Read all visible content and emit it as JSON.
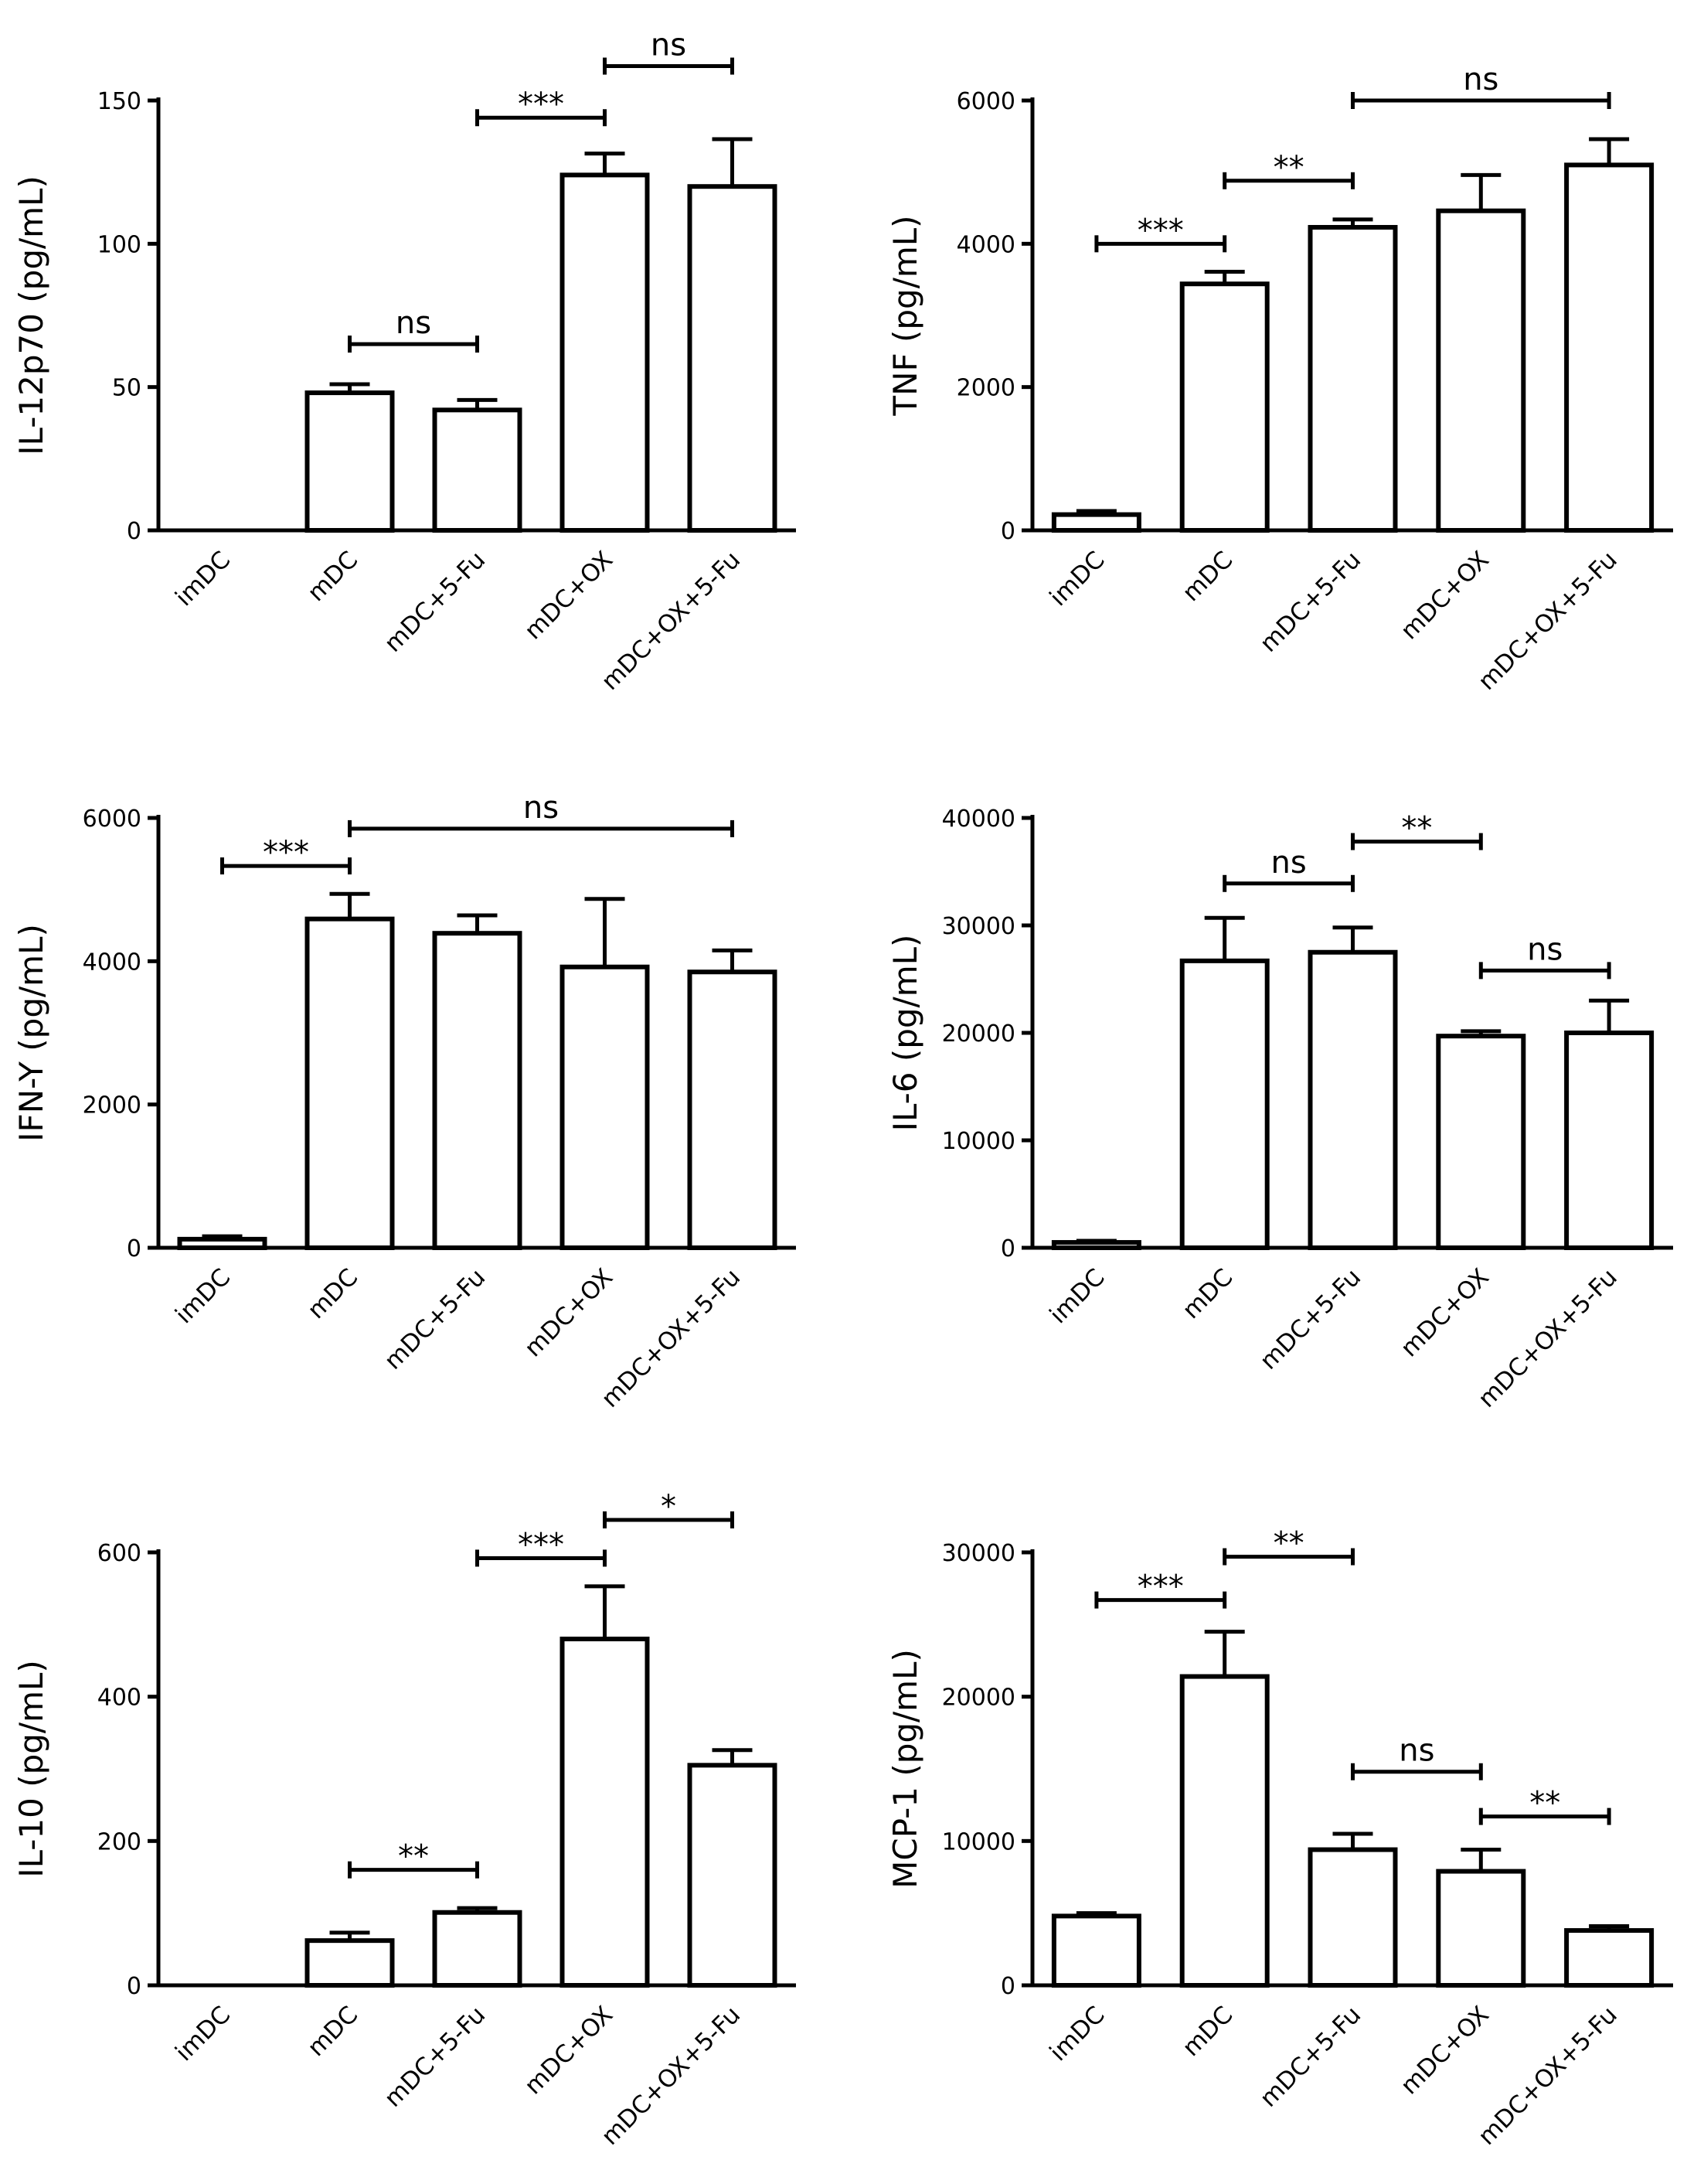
{
  "chart_data": [
    {
      "type": "bar",
      "ylabel": "IL-12p70 (pg/mL)",
      "ylim": [
        0,
        150
      ],
      "yticks": [
        0,
        50,
        100,
        150
      ],
      "categories": [
        "imDC",
        "mDC",
        "mDC+5-Fu",
        "mDC+OX",
        "mDC+OX+5-Fu"
      ],
      "values": [
        0,
        48,
        42,
        124,
        120
      ],
      "errors": [
        0,
        3,
        3.5,
        7.5,
        16.5
      ],
      "comparisons": [
        {
          "from": 1,
          "to": 2,
          "label": "ns",
          "y": 65
        },
        {
          "from": 2,
          "to": 3,
          "label": "***",
          "y": 144
        },
        {
          "from": 3,
          "to": 4,
          "label": "ns",
          "y": 162
        }
      ]
    },
    {
      "type": "bar",
      "ylabel": "TNF (pg/mL)",
      "ylim": [
        0,
        6000
      ],
      "yticks": [
        0,
        2000,
        4000,
        6000
      ],
      "categories": [
        "imDC",
        "mDC",
        "mDC+5-Fu",
        "mDC+OX",
        "mDC+OX+5-Fu"
      ],
      "values": [
        220,
        3440,
        4230,
        4460,
        5100
      ],
      "errors": [
        50,
        170,
        110,
        500,
        360
      ],
      "comparisons": [
        {
          "from": 0,
          "to": 1,
          "label": "***",
          "y": 4000
        },
        {
          "from": 1,
          "to": 2,
          "label": "**",
          "y": 4880
        },
        {
          "from": 2,
          "to": 4,
          "label": "ns",
          "y": 6000
        }
      ]
    },
    {
      "type": "bar",
      "ylabel": "IFN-Y (pg/mL)",
      "ylim": [
        0,
        6000
      ],
      "yticks": [
        0,
        2000,
        4000,
        6000
      ],
      "categories": [
        "imDC",
        "mDC",
        "mDC+5-Fu",
        "mDC+OX",
        "mDC+OX+5-Fu"
      ],
      "values": [
        120,
        4590,
        4390,
        3920,
        3850
      ],
      "errors": [
        40,
        350,
        250,
        950,
        300
      ],
      "comparisons": [
        {
          "from": 0,
          "to": 1,
          "label": "***",
          "y": 5330
        },
        {
          "from": 1,
          "to": 4,
          "label": "ns",
          "y": 5850
        }
      ]
    },
    {
      "type": "bar",
      "ylabel": "IL-6 (pg/mL)",
      "ylim": [
        0,
        40000
      ],
      "yticks": [
        0,
        10000,
        20000,
        30000,
        40000
      ],
      "categories": [
        "imDC",
        "mDC",
        "mDC+5-Fu",
        "mDC+OX",
        "mDC+OX+5-Fu"
      ],
      "values": [
        500,
        26700,
        27500,
        19700,
        20000
      ],
      "errors": [
        150,
        4000,
        2300,
        450,
        3000
      ],
      "comparisons": [
        {
          "from": 1,
          "to": 2,
          "label": "ns",
          "y": 33900
        },
        {
          "from": 2,
          "to": 3,
          "label": "**",
          "y": 37800
        },
        {
          "from": 3,
          "to": 4,
          "label": "ns",
          "y": 25800
        }
      ]
    },
    {
      "type": "bar",
      "ylabel": "IL-10 (pg/mL)",
      "ylim": [
        0,
        600
      ],
      "yticks": [
        0,
        200,
        400,
        600
      ],
      "categories": [
        "imDC",
        "mDC",
        "mDC+5-Fu",
        "mDC+OX",
        "mDC+OX+5-Fu"
      ],
      "values": [
        0,
        62,
        101,
        480,
        305
      ],
      "errors": [
        0,
        11,
        6,
        73,
        21
      ],
      "comparisons": [
        {
          "from": 1,
          "to": 2,
          "label": "**",
          "y": 160
        },
        {
          "from": 2,
          "to": 3,
          "label": "***",
          "y": 592
        },
        {
          "from": 3,
          "to": 4,
          "label": "*",
          "y": 645
        }
      ]
    },
    {
      "type": "bar",
      "ylabel": "MCP-1 (pg/mL)",
      "ylim": [
        0,
        30000
      ],
      "yticks": [
        0,
        10000,
        20000,
        30000
      ],
      "categories": [
        "imDC",
        "mDC",
        "mDC+5-Fu",
        "mDC+OX",
        "mDC+OX+5-Fu"
      ],
      "values": [
        4800,
        21400,
        9400,
        7900,
        3800
      ],
      "errors": [
        200,
        3100,
        1100,
        1500,
        300
      ],
      "comparisons": [
        {
          "from": 0,
          "to": 1,
          "label": "***",
          "y": 26700
        },
        {
          "from": 1,
          "to": 2,
          "label": "**",
          "y": 29700
        },
        {
          "from": 2,
          "to": 3,
          "label": "ns",
          "y": 14800
        },
        {
          "from": 3,
          "to": 4,
          "label": "**",
          "y": 11700
        }
      ]
    }
  ]
}
